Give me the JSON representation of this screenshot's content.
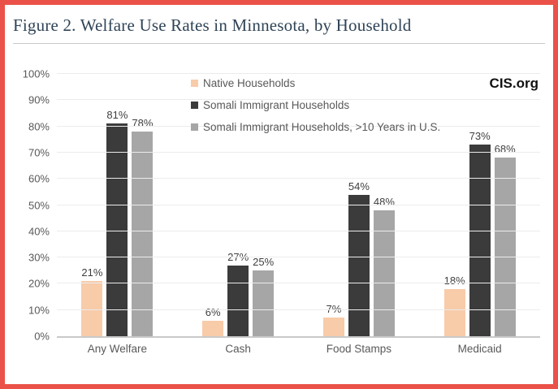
{
  "figure": {
    "title": "Figure 2. Welfare Use Rates in Minnesota, by Household",
    "source": "CIS.org"
  },
  "colors": {
    "page_border": "#EA5249",
    "title_text": "#2F4457",
    "axis_text": "#595959",
    "data_label_text": "#3F3F3F",
    "gridline": "#ECECEC",
    "axis_line": "#C9C9C9"
  },
  "chart_data": {
    "type": "bar",
    "title": "Figure 2. Welfare Use Rates in Minnesota, by Household",
    "source_label": "CIS.org",
    "categories": [
      "Any Welfare",
      "Cash",
      "Food Stamps",
      "Medicaid"
    ],
    "series": [
      {
        "name": "Native Households",
        "color": "#F8CBA9",
        "values": [
          21,
          6,
          7,
          18
        ]
      },
      {
        "name": "Somali Immigrant Households",
        "color": "#3B3B3B",
        "values": [
          81,
          27,
          54,
          73
        ]
      },
      {
        "name": "Somali Immigrant Households, >10 Years in U.S.",
        "color": "#A6A6A6",
        "values": [
          78,
          25,
          48,
          68
        ]
      }
    ],
    "data_label_format": "percent",
    "xlabel": "",
    "ylabel": "",
    "y_axis": {
      "min": 0,
      "max": 100,
      "step": 10,
      "tick_labels": [
        "0%",
        "10%",
        "20%",
        "30%",
        "40%",
        "50%",
        "60%",
        "70%",
        "80%",
        "90%",
        "100%"
      ]
    },
    "grid": true,
    "legend_position": "top-center",
    "data_labels": true
  }
}
